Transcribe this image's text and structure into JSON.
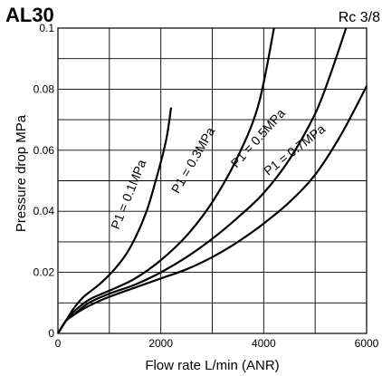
{
  "header": {
    "model": "AL30",
    "port": "Rc 3/8"
  },
  "chart_data": {
    "type": "line",
    "xlabel": "Flow rate  L/min (ANR)",
    "ylabel": "Pressure drop  MPa",
    "xlim": [
      0,
      6000
    ],
    "ylim": [
      0,
      0.1
    ],
    "x_ticks": [
      "0",
      "2000",
      "4000",
      "6000"
    ],
    "y_ticks": [
      "0",
      "0.02",
      "0.04",
      "0.06",
      "0.08",
      "0.1"
    ],
    "grid": true,
    "series": [
      {
        "name": "P1 = 0.1MPa",
        "x": [
          0,
          150,
          300,
          500,
          800,
          1100,
          1400,
          1700,
          1900,
          2100,
          2200
        ],
        "y": [
          0,
          0.004,
          0.008,
          0.012,
          0.016,
          0.021,
          0.028,
          0.039,
          0.05,
          0.063,
          0.074
        ]
      },
      {
        "name": "P1 = 0.3MPa",
        "x": [
          0,
          150,
          300,
          600,
          1000,
          1500,
          2000,
          2500,
          3000,
          3500,
          3900,
          4200
        ],
        "y": [
          0,
          0.004,
          0.007,
          0.011,
          0.014,
          0.018,
          0.024,
          0.032,
          0.043,
          0.058,
          0.075,
          0.1
        ]
      },
      {
        "name": "P1 = 0.5MPa",
        "x": [
          0,
          150,
          300,
          600,
          1000,
          1500,
          2000,
          2500,
          3000,
          3500,
          4000,
          4500,
          5000,
          5300,
          5600
        ],
        "y": [
          0,
          0.004,
          0.006,
          0.01,
          0.013,
          0.016,
          0.02,
          0.025,
          0.031,
          0.038,
          0.046,
          0.057,
          0.072,
          0.085,
          0.1
        ]
      },
      {
        "name": "P1 = 0.7MPa",
        "x": [
          0,
          150,
          300,
          600,
          1000,
          1500,
          2000,
          2500,
          3000,
          3500,
          4000,
          4500,
          5000,
          5500,
          6000
        ],
        "y": [
          0,
          0.004,
          0.006,
          0.009,
          0.012,
          0.015,
          0.018,
          0.021,
          0.025,
          0.03,
          0.036,
          0.043,
          0.052,
          0.065,
          0.081
        ]
      }
    ]
  }
}
